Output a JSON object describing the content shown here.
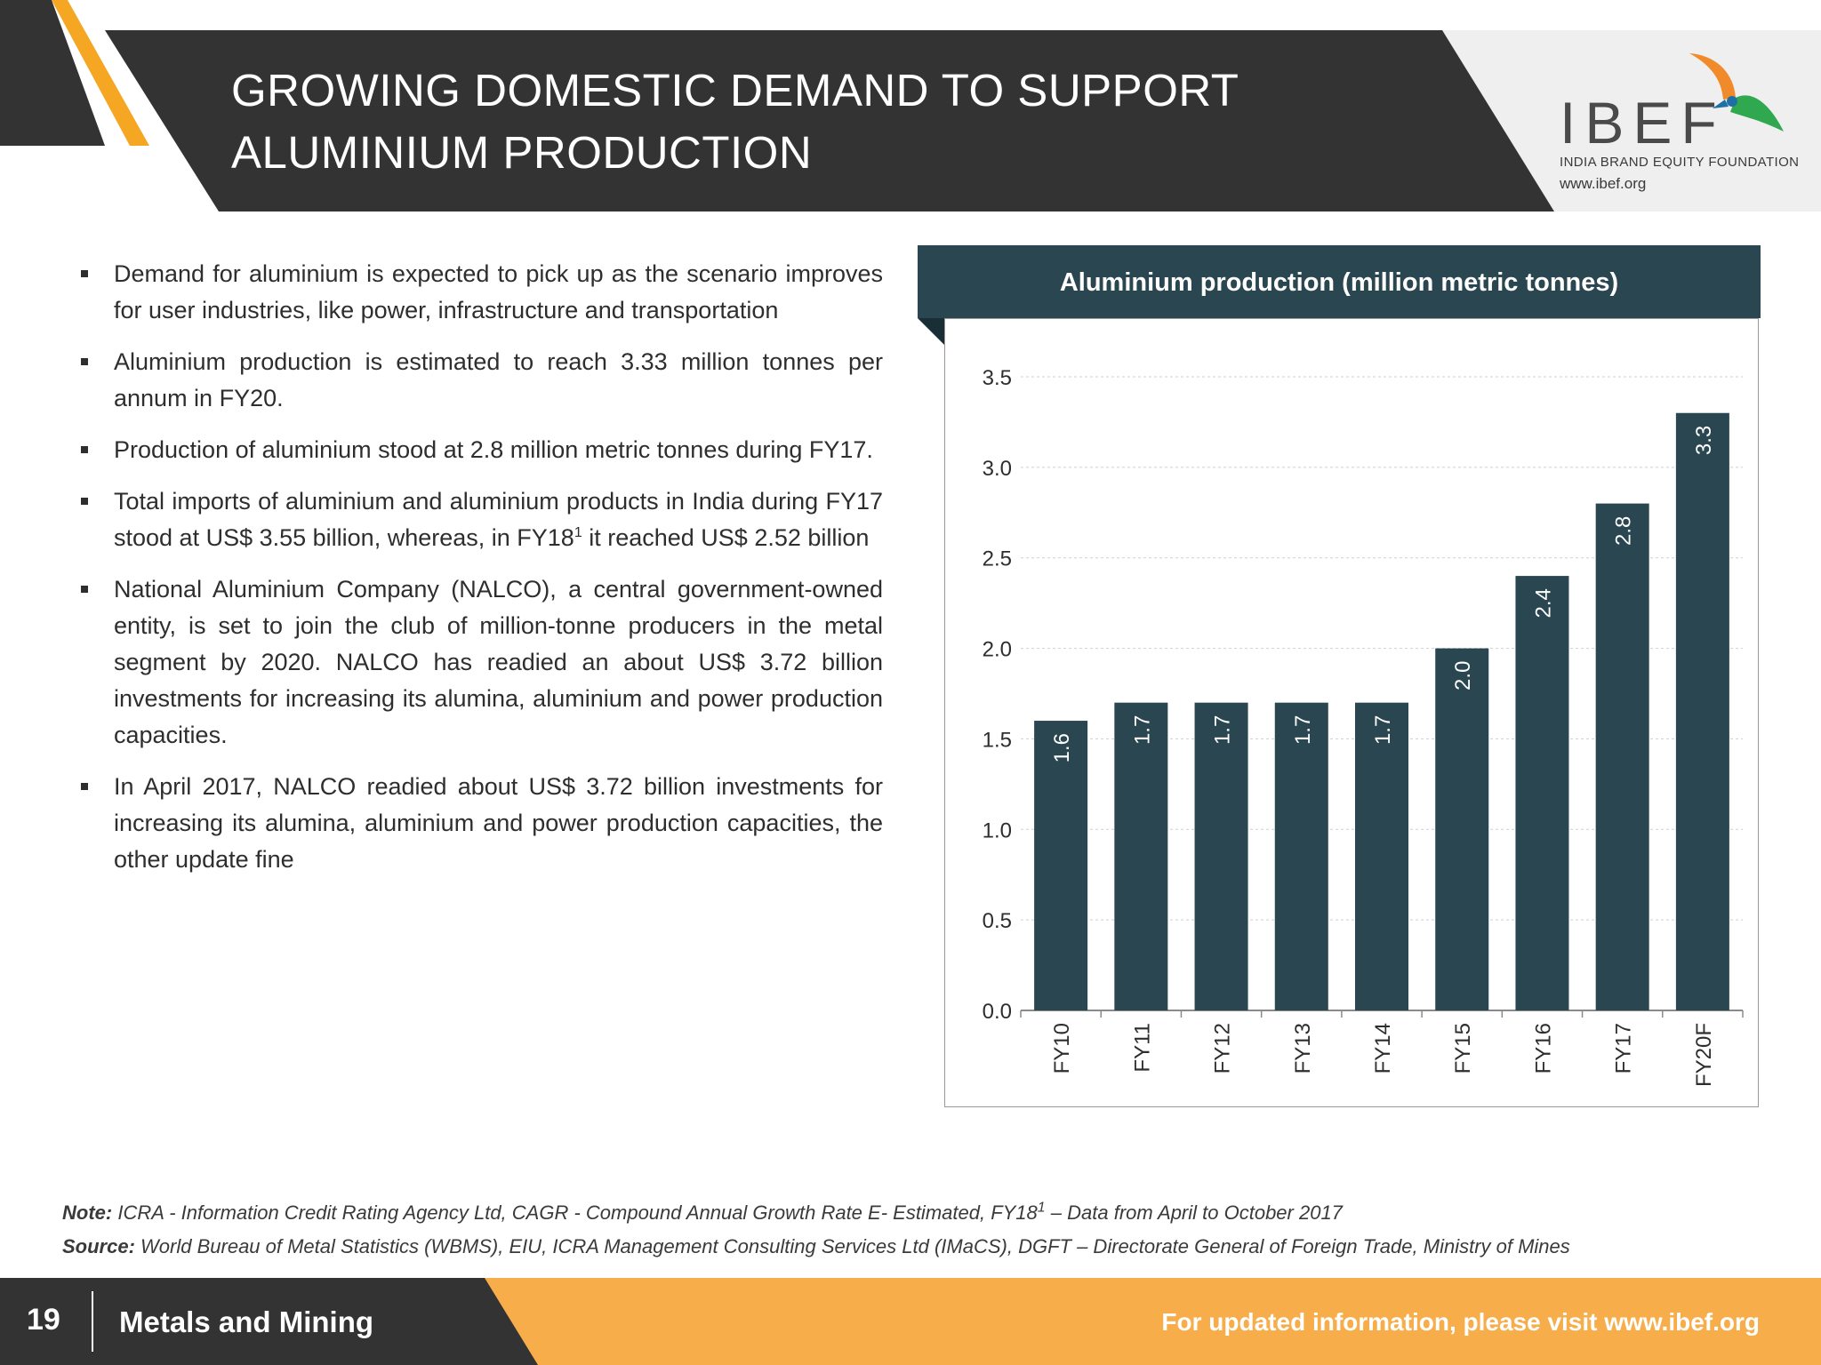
{
  "header": {
    "title_line1": "GROWING DOMESTIC DEMAND TO SUPPORT",
    "title_line2": "ALUMINIUM PRODUCTION"
  },
  "logo": {
    "wordmark": "IBEF",
    "tagline": "INDIA BRAND EQUITY FOUNDATION",
    "url": "www.ibef.org"
  },
  "bullets": [
    {
      "text": "Demand for aluminium is expected to pick up as the scenario improves for user industries, like power, infrastructure and transportation"
    },
    {
      "text": "Aluminium production is estimated to reach 3.33 million tonnes per annum in FY20."
    },
    {
      "text": "Production of aluminium stood at 2.8 million metric  tonnes during FY17."
    },
    {
      "text_before": "Total imports of aluminium and aluminium products in India during FY17 stood at US$ 3.55 billion, whereas, in FY18",
      "sup": "1",
      "text_after": " it reached US$ 2.52 billion"
    },
    {
      "text": "National Aluminium Company (NALCO), a central government-owned entity, is set to join the club of million-tonne producers in the metal segment by 2020. NALCO has readied an about US$ 3.72 billion investments for increasing its alumina, aluminium and power production capacities."
    },
    {
      "text": "In April 2017, NALCO readied about US$ 3.72 billion investments for increasing its alumina, aluminium and power production capacities, the other update fine"
    }
  ],
  "chart_data": {
    "type": "bar",
    "title": "Aluminium production (million metric tonnes)",
    "categories": [
      "FY10",
      "FY11",
      "FY12",
      "FY13",
      "FY14",
      "FY15",
      "FY16",
      "FY17",
      "FY20F"
    ],
    "values": [
      1.6,
      1.7,
      1.7,
      1.7,
      1.7,
      2.0,
      2.4,
      2.8,
      3.3
    ],
    "data_labels": [
      "1.6",
      "1.7",
      "1.7",
      "1.7",
      "1.7",
      "2.0",
      "2.4",
      "2.8",
      "3.3"
    ],
    "ylim": [
      0,
      3.5
    ],
    "yticks": [
      "0.0",
      "0.5",
      "1.0",
      "1.5",
      "2.0",
      "2.5",
      "3.0",
      "3.5"
    ],
    "xlabel": "",
    "ylabel": "",
    "grid": true,
    "bar_color": "#2a4650"
  },
  "notes": {
    "note_label": "Note:",
    "note_before": " ICRA - Information Credit Rating Agency Ltd, CAGR - Compound Annual Growth Rate E- Estimated, FY18",
    "note_sup": "1",
    "note_after": " – Data from April to October 2017",
    "source_label": "Source:",
    "source_text": " World Bureau of Metal Statistics (WBMS), EIU, ICRA Management Consulting Services Ltd (IMaCS), DGFT – Directorate General of Foreign Trade, Ministry of Mines"
  },
  "footer": {
    "page_number": "19",
    "section": "Metals and Mining",
    "cta": "For updated information, please visit www.ibef.org"
  },
  "colors": {
    "header_dark": "#333333",
    "accent_orange": "#f5a623",
    "chart_teal": "#2a4650",
    "footer_orange": "#f7ad4a"
  }
}
